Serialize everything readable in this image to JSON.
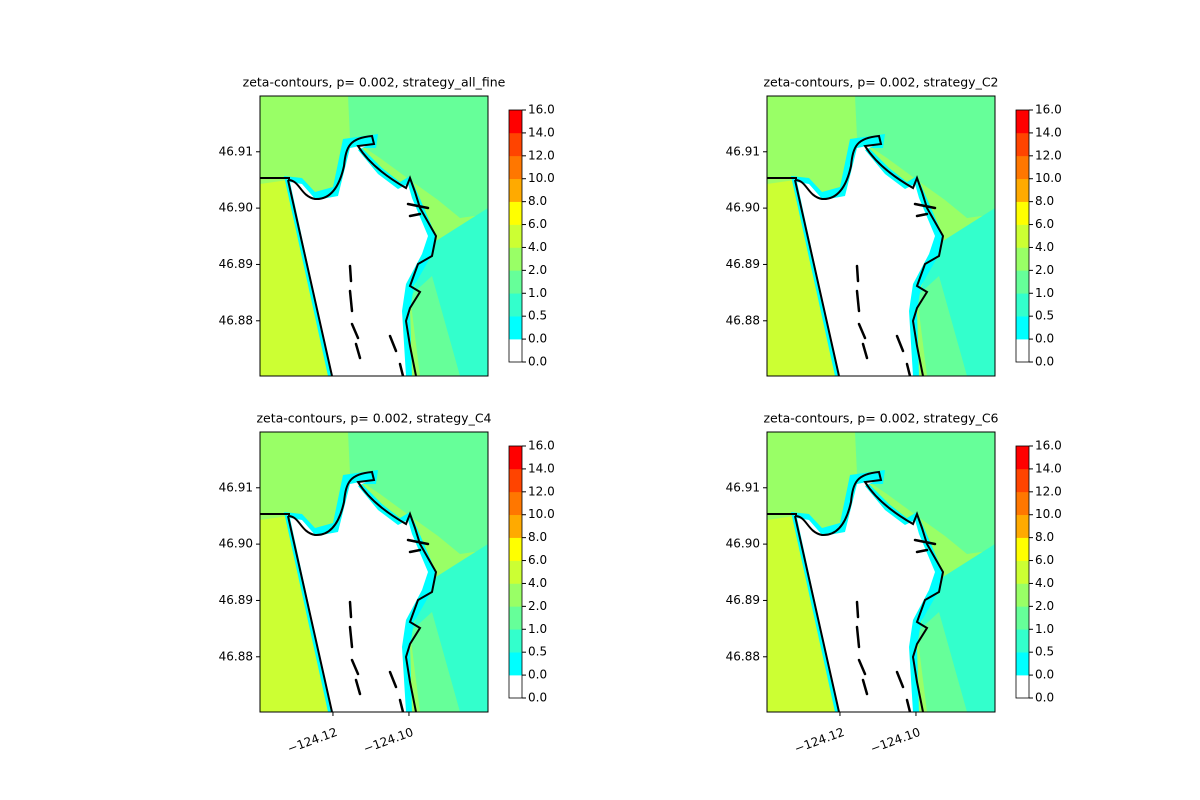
{
  "chart_data": [
    {
      "type": "contour",
      "title": "zeta-contours, p= 0.002, strategy_all_fine",
      "xlim": [
        -124.1392,
        -124.0792
      ],
      "ylim": [
        46.8702,
        46.9199
      ],
      "yticks": [
        {
          "value": 46.88,
          "label": "46.88"
        },
        {
          "value": 46.89,
          "label": "46.89"
        },
        {
          "value": 46.9,
          "label": "46.90"
        },
        {
          "value": 46.91,
          "label": "46.91"
        }
      ],
      "levels": [
        {
          "value": 0,
          "label": "0.0"
        },
        {
          "value": 0,
          "label": "0.0"
        },
        {
          "value": 0.5,
          "label": "0.5"
        },
        {
          "value": 1,
          "label": "1.0"
        },
        {
          "value": 2,
          "label": "2.0"
        },
        {
          "value": 4,
          "label": "4.0"
        },
        {
          "value": 6,
          "label": "6.0"
        },
        {
          "value": 8,
          "label": "8.0"
        },
        {
          "value": 10,
          "label": "10.0"
        },
        {
          "value": 12,
          "label": "12.0"
        },
        {
          "value": 14,
          "label": "14.0"
        },
        {
          "value": 16,
          "label": "16.0"
        }
      ],
      "colors": [
        "#ffffff",
        "#00ffff",
        "#33ffcc",
        "#66ff99",
        "#99ff66",
        "#ccff33",
        "#ffff00",
        "#ffaa00",
        "#ff7700",
        "#ff4400",
        "#ff0000"
      ]
    },
    {
      "type": "contour",
      "title": "zeta-contours, p= 0.002, strategy_C2",
      "xlim": [
        -124.1392,
        -124.0792
      ],
      "ylim": [
        46.8702,
        46.9199
      ],
      "yticks": [
        {
          "value": 46.88,
          "label": "46.88"
        },
        {
          "value": 46.89,
          "label": "46.89"
        },
        {
          "value": 46.9,
          "label": "46.90"
        },
        {
          "value": 46.91,
          "label": "46.91"
        }
      ],
      "levels": [
        {
          "value": 0,
          "label": "0.0"
        },
        {
          "value": 0,
          "label": "0.0"
        },
        {
          "value": 0.5,
          "label": "0.5"
        },
        {
          "value": 1,
          "label": "1.0"
        },
        {
          "value": 2,
          "label": "2.0"
        },
        {
          "value": 4,
          "label": "4.0"
        },
        {
          "value": 6,
          "label": "6.0"
        },
        {
          "value": 8,
          "label": "8.0"
        },
        {
          "value": 10,
          "label": "10.0"
        },
        {
          "value": 12,
          "label": "12.0"
        },
        {
          "value": 14,
          "label": "14.0"
        },
        {
          "value": 16,
          "label": "16.0"
        }
      ],
      "colors": [
        "#ffffff",
        "#00ffff",
        "#33ffcc",
        "#66ff99",
        "#99ff66",
        "#ccff33",
        "#ffff00",
        "#ffaa00",
        "#ff7700",
        "#ff4400",
        "#ff0000"
      ]
    },
    {
      "type": "contour",
      "title": "zeta-contours, p= 0.002, strategy_C4",
      "xlim": [
        -124.1392,
        -124.0792
      ],
      "ylim": [
        46.8702,
        46.9199
      ],
      "xticks": [
        {
          "value": -124.12,
          "label": "−124.12"
        },
        {
          "value": -124.1,
          "label": "−124.10"
        }
      ],
      "yticks": [
        {
          "value": 46.88,
          "label": "46.88"
        },
        {
          "value": 46.89,
          "label": "46.89"
        },
        {
          "value": 46.9,
          "label": "46.90"
        },
        {
          "value": 46.91,
          "label": "46.91"
        }
      ],
      "levels": [
        {
          "value": 0,
          "label": "0.0"
        },
        {
          "value": 0,
          "label": "0.0"
        },
        {
          "value": 0.5,
          "label": "0.5"
        },
        {
          "value": 1,
          "label": "1.0"
        },
        {
          "value": 2,
          "label": "2.0"
        },
        {
          "value": 4,
          "label": "4.0"
        },
        {
          "value": 6,
          "label": "6.0"
        },
        {
          "value": 8,
          "label": "8.0"
        },
        {
          "value": 10,
          "label": "10.0"
        },
        {
          "value": 12,
          "label": "12.0"
        },
        {
          "value": 14,
          "label": "14.0"
        },
        {
          "value": 16,
          "label": "16.0"
        }
      ],
      "colors": [
        "#ffffff",
        "#00ffff",
        "#33ffcc",
        "#66ff99",
        "#99ff66",
        "#ccff33",
        "#ffff00",
        "#ffaa00",
        "#ff7700",
        "#ff4400",
        "#ff0000"
      ]
    },
    {
      "type": "contour",
      "title": "zeta-contours, p= 0.002, strategy_C6",
      "xlim": [
        -124.1392,
        -124.0792
      ],
      "ylim": [
        46.8702,
        46.9199
      ],
      "xticks": [
        {
          "value": -124.12,
          "label": "−124.12"
        },
        {
          "value": -124.1,
          "label": "−124.10"
        }
      ],
      "yticks": [
        {
          "value": 46.88,
          "label": "46.88"
        },
        {
          "value": 46.89,
          "label": "46.89"
        },
        {
          "value": 46.9,
          "label": "46.90"
        },
        {
          "value": 46.91,
          "label": "46.91"
        }
      ],
      "levels": [
        {
          "value": 0,
          "label": "0.0"
        },
        {
          "value": 0,
          "label": "0.0"
        },
        {
          "value": 0.5,
          "label": "0.5"
        },
        {
          "value": 1,
          "label": "1.0"
        },
        {
          "value": 2,
          "label": "2.0"
        },
        {
          "value": 4,
          "label": "4.0"
        },
        {
          "value": 6,
          "label": "6.0"
        },
        {
          "value": 8,
          "label": "8.0"
        },
        {
          "value": 10,
          "label": "10.0"
        },
        {
          "value": 12,
          "label": "12.0"
        },
        {
          "value": 14,
          "label": "14.0"
        },
        {
          "value": 16,
          "label": "16.0"
        }
      ],
      "colors": [
        "#ffffff",
        "#00ffff",
        "#33ffcc",
        "#66ff99",
        "#99ff66",
        "#ccff33",
        "#ffff00",
        "#ffaa00",
        "#ff7700",
        "#ff4400",
        "#ff0000"
      ]
    }
  ]
}
